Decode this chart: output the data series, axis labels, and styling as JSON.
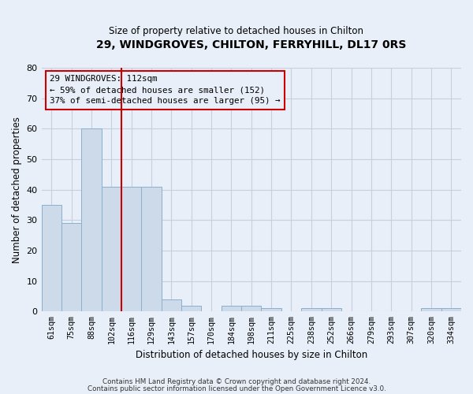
{
  "title": "29, WINDGROVES, CHILTON, FERRYHILL, DL17 0RS",
  "subtitle": "Size of property relative to detached houses in Chilton",
  "xlabel": "Distribution of detached houses by size in Chilton",
  "ylabel": "Number of detached properties",
  "categories": [
    "61sqm",
    "75sqm",
    "88sqm",
    "102sqm",
    "116sqm",
    "129sqm",
    "143sqm",
    "157sqm",
    "170sqm",
    "184sqm",
    "198sqm",
    "211sqm",
    "225sqm",
    "238sqm",
    "252sqm",
    "266sqm",
    "279sqm",
    "293sqm",
    "307sqm",
    "320sqm",
    "334sqm"
  ],
  "values": [
    35,
    29,
    60,
    41,
    41,
    41,
    4,
    2,
    0,
    2,
    2,
    1,
    0,
    1,
    1,
    0,
    0,
    0,
    0,
    1,
    1
  ],
  "bar_color": "#ccdaea",
  "bar_edge_color": "#8ab0d0",
  "grid_color": "#c5cfe0",
  "background_color": "#e8eff8",
  "ylim": [
    0,
    80
  ],
  "yticks": [
    0,
    10,
    20,
    30,
    40,
    50,
    60,
    70,
    80
  ],
  "property_bin_index": 4,
  "property_line_color": "#cc0000",
  "annotation_text": "29 WINDGROVES: 112sqm\n← 59% of detached houses are smaller (152)\n37% of semi-detached houses are larger (95) →",
  "annotation_box_color": "#cc0000",
  "footer_line1": "Contains HM Land Registry data © Crown copyright and database right 2024.",
  "footer_line2": "Contains public sector information licensed under the Open Government Licence v3.0."
}
